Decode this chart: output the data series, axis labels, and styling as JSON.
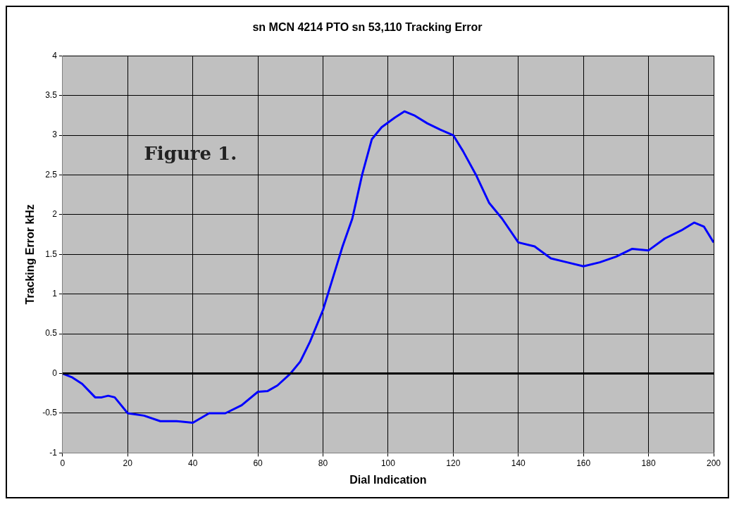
{
  "chart_data": {
    "type": "line",
    "title": "sn MCN 4214 PTO sn 53,110 Tracking Error",
    "xlabel": "Dial Indication",
    "ylabel": "Tracking Error kHz",
    "x": [
      0,
      3,
      6,
      10,
      12,
      14,
      16,
      20,
      25,
      30,
      35,
      40,
      45,
      50,
      55,
      60,
      63,
      66,
      70,
      73,
      76,
      80,
      83,
      86,
      89,
      92,
      95,
      98,
      102,
      105,
      108,
      112,
      116,
      120,
      123,
      127,
      131,
      135,
      140,
      145,
      150,
      155,
      160,
      165,
      170,
      175,
      180,
      185,
      190,
      194,
      197,
      200
    ],
    "series": [
      {
        "color": "#0000ff",
        "values": [
          0,
          -0.05,
          -0.13,
          -0.3,
          -0.3,
          -0.28,
          -0.3,
          -0.5,
          -0.53,
          -0.6,
          -0.6,
          -0.62,
          -0.5,
          -0.5,
          -0.4,
          -0.23,
          -0.22,
          -0.15,
          0,
          0.15,
          0.4,
          0.8,
          1.2,
          1.6,
          1.95,
          2.5,
          2.95,
          3.1,
          3.22,
          3.3,
          3.25,
          3.15,
          3.07,
          3.0,
          2.8,
          2.5,
          2.15,
          1.95,
          1.65,
          1.6,
          1.45,
          1.4,
          1.35,
          1.4,
          1.47,
          1.57,
          1.55,
          1.7,
          1.8,
          1.9,
          1.85,
          1.65
        ]
      }
    ],
    "xlim": [
      0,
      200
    ],
    "xticks": [
      0,
      20,
      40,
      60,
      80,
      100,
      120,
      140,
      160,
      180,
      200
    ],
    "ylim": [
      -1,
      4
    ],
    "yticks": [
      -1,
      -0.5,
      0,
      0.5,
      1,
      1.5,
      2,
      2.5,
      3,
      3.5,
      4
    ],
    "grid": true,
    "legend": false,
    "marker": "none",
    "line_style": "solid",
    "ref_lines": [
      {
        "axis": "y",
        "value": 0,
        "color": "#000000"
      }
    ],
    "annotations": [
      "Figure 1."
    ]
  }
}
